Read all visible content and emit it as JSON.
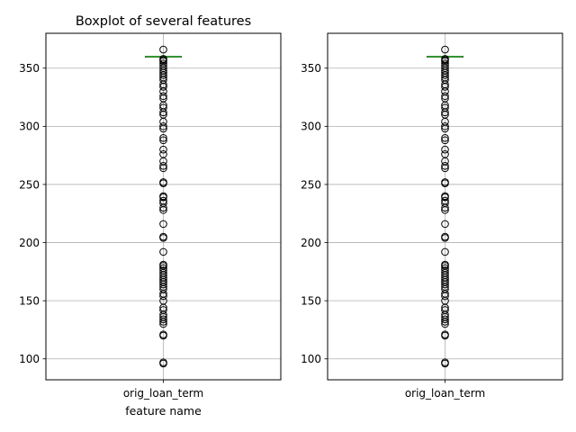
{
  "chart_data": [
    {
      "type": "boxplot",
      "title": "Boxplot of several features",
      "xlabel": "feature name",
      "ylabel": "",
      "categories": [
        "orig_loan_term"
      ],
      "ylim": [
        82,
        380
      ],
      "yticks": [
        100,
        150,
        200,
        250,
        300,
        350
      ],
      "grid": true,
      "box": {
        "q1": 360,
        "median": 360,
        "q3": 360,
        "whisker_low": 360,
        "whisker_high": 360
      },
      "outliers": [
        96,
        97,
        120,
        121,
        130,
        132,
        134,
        136,
        138,
        142,
        144,
        150,
        154,
        156,
        160,
        162,
        164,
        166,
        168,
        170,
        172,
        174,
        176,
        178,
        180,
        181,
        192,
        204,
        205,
        216,
        228,
        230,
        234,
        236,
        239,
        240,
        251,
        252,
        264,
        266,
        270,
        276,
        280,
        288,
        290,
        298,
        300,
        304,
        310,
        312,
        316,
        318,
        324,
        326,
        330,
        334,
        336,
        340,
        342,
        344,
        346,
        348,
        350,
        352,
        354,
        356,
        357,
        358,
        366
      ]
    },
    {
      "type": "boxplot",
      "title": "",
      "xlabel": "",
      "ylabel": "",
      "categories": [
        "orig_loan_term"
      ],
      "ylim": [
        82,
        380
      ],
      "yticks": [
        100,
        150,
        200,
        250,
        300,
        350
      ],
      "grid": true,
      "box": {
        "q1": 360,
        "median": 360,
        "q3": 360,
        "whisker_low": 360,
        "whisker_high": 360
      },
      "outliers": [
        96,
        97,
        120,
        121,
        130,
        132,
        134,
        136,
        138,
        142,
        144,
        150,
        154,
        156,
        160,
        162,
        164,
        166,
        168,
        170,
        172,
        174,
        176,
        178,
        180,
        181,
        192,
        204,
        205,
        216,
        228,
        230,
        234,
        236,
        239,
        240,
        251,
        252,
        264,
        266,
        270,
        276,
        280,
        288,
        290,
        298,
        300,
        304,
        310,
        312,
        316,
        318,
        324,
        326,
        330,
        334,
        336,
        340,
        342,
        344,
        346,
        348,
        350,
        352,
        354,
        356,
        357,
        358,
        366
      ]
    }
  ],
  "colors": {
    "median": "#2ca02c",
    "grid": "#b0b0b0",
    "flier": "#000000",
    "axes": "#000000"
  }
}
